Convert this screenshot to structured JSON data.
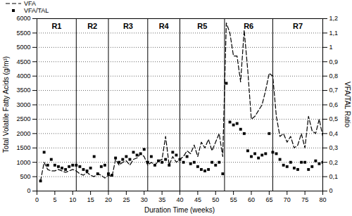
{
  "chart_data": {
    "type": "line",
    "xlabel": "Duration Time (weeks)",
    "ylabel": "Total Volatile Fatty Acids (g/m³)",
    "y2label": "VFA/TAL Ratio",
    "x": [
      1,
      2,
      3,
      4,
      5,
      6,
      7,
      8,
      9,
      10,
      11,
      12,
      13,
      14,
      15,
      16,
      17,
      18,
      19,
      20,
      21,
      22,
      23,
      24,
      25,
      26,
      27,
      28,
      29,
      30,
      31,
      32,
      33,
      34,
      35,
      36,
      37,
      38,
      39,
      40,
      41,
      42,
      43,
      44,
      45,
      46,
      47,
      48,
      49,
      50,
      51,
      52,
      53,
      54,
      55,
      56,
      57,
      58,
      59,
      60,
      61,
      62,
      63,
      64,
      65,
      66,
      67,
      68,
      69,
      70,
      71,
      72,
      73,
      74,
      75,
      76,
      77,
      78,
      79,
      80
    ],
    "series": [
      {
        "name": "VFA",
        "type": "line",
        "color": "#000000",
        "line_style": "dashed",
        "values": [
          350,
          1000,
          750,
          700,
          700,
          750,
          700,
          650,
          700,
          750,
          700,
          600,
          550,
          650,
          550,
          500,
          600,
          550,
          450,
          550,
          500,
          1100,
          900,
          1000,
          1050,
          900,
          1100,
          1150,
          1300,
          1200,
          900,
          1000,
          900,
          1050,
          1100,
          1900,
          900,
          1200,
          1000,
          1100,
          1200,
          1400,
          1300,
          1600,
          1200,
          1700,
          1500,
          1800,
          1400,
          1700,
          2000,
          1200,
          5850,
          5500,
          4700,
          4700,
          3800,
          5600,
          4200,
          2500,
          2600,
          2800,
          3000,
          3500,
          4100,
          4000,
          2600,
          1900,
          2000,
          1700,
          1900,
          1500,
          1600,
          2000,
          1500,
          2600,
          2100,
          2000,
          2500,
          1900
        ]
      },
      {
        "name": "VFA/TAL",
        "type": "scatter",
        "color": "#000000",
        "marker": "square",
        "axis": "y2",
        "values": [
          0.07,
          0.27,
          0.18,
          0.22,
          0.18,
          0.17,
          0.16,
          0.15,
          0.17,
          0.18,
          0.18,
          0.17,
          0.15,
          0.14,
          0.16,
          0.24,
          0.12,
          0.17,
          0.18,
          0.12,
          0.11,
          0.23,
          0.2,
          0.22,
          0.24,
          0.22,
          0.27,
          0.25,
          0.26,
          0.29,
          0.2,
          0.24,
          0.18,
          0.21,
          0.2,
          0.22,
          0.18,
          0.27,
          0.25,
          0.22,
          0.2,
          0.24,
          0.19,
          0.2,
          0.17,
          0.15,
          0.14,
          0.15,
          0.2,
          0.18,
          0.2,
          0.12,
          0.75,
          0.48,
          0.46,
          0.47,
          0.43,
          0.4,
          0.28,
          0.24,
          0.26,
          0.23,
          0.25,
          0.26,
          0.4,
          0.27,
          0.26,
          0.22,
          0.18,
          0.17,
          0.2,
          0.16,
          0.15,
          0.2,
          0.2,
          0.15,
          0.17,
          0.21,
          0.19,
          0.2
        ]
      }
    ],
    "xlim": [
      0,
      80
    ],
    "xticks": [
      0,
      5,
      10,
      15,
      20,
      25,
      30,
      35,
      40,
      45,
      50,
      55,
      60,
      65,
      70,
      75,
      80
    ],
    "ylim": [
      0,
      6000
    ],
    "yticks": [
      0,
      500,
      1000,
      1500,
      2000,
      2500,
      3000,
      3500,
      4000,
      4500,
      5000,
      5500,
      6000
    ],
    "y2lim": [
      0,
      1.2
    ],
    "y2ticks": [
      0,
      {
        "value": 0.1,
        "label": "0,1"
      },
      {
        "value": 0.2,
        "label": "0,2"
      },
      {
        "value": 0.3,
        "label": "0,3"
      },
      {
        "value": 0.4,
        "label": "0,4"
      },
      {
        "value": 0.5,
        "label": "0,5"
      },
      {
        "value": 0.6,
        "label": "0,6"
      },
      {
        "value": 0.7,
        "label": "0,7"
      },
      {
        "value": 0.8,
        "label": "0,8"
      },
      {
        "value": 0.9,
        "label": "0,9"
      },
      {
        "value": 1,
        "label": "1"
      },
      {
        "value": 1.1,
        "label": "1,1"
      },
      {
        "value": 1.2,
        "label": "1,2"
      }
    ],
    "grid": true,
    "legend": "top-left",
    "annotations": [
      {
        "text": "R1",
        "x_start": 0,
        "x_end": 11
      },
      {
        "text": "R2",
        "x_start": 11,
        "x_end": 20
      },
      {
        "text": "R3",
        "x_start": 20,
        "x_end": 31
      },
      {
        "text": "R4",
        "x_start": 31,
        "x_end": 40
      },
      {
        "text": "R5",
        "x_start": 40,
        "x_end": 52.5
      },
      {
        "text": "R6",
        "x_start": 52.5,
        "x_end": 66
      },
      {
        "text": "R7",
        "x_start": 66,
        "x_end": 80
      }
    ]
  }
}
